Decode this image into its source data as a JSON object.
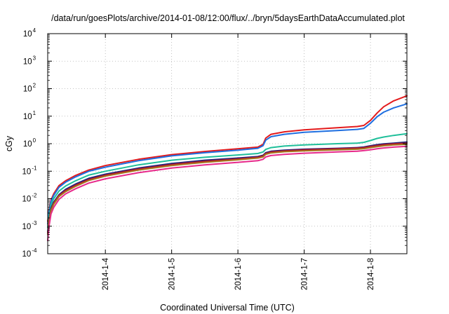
{
  "chart_data": {
    "type": "line",
    "title": "/data/run/goesPlots/archive/2014-01-08/12:00/flux/../bryn/5daysEarthDataAccumulated.plot",
    "xlabel": "Coordinated Universal Time (UTC)",
    "ylabel": "cGy",
    "x_unit": "days since 2014-01-03 00:00 UTC",
    "xlim": [
      0.13,
      5.55
    ],
    "yscale": "log",
    "ylim": [
      0.0001,
      10000
    ],
    "y_ticks": [
      {
        "base": "10",
        "exp": "-4"
      },
      {
        "base": "10",
        "exp": "-3"
      },
      {
        "base": "10",
        "exp": "-2"
      },
      {
        "base": "10",
        "exp": "-1"
      },
      {
        "base": "10",
        "exp": "0"
      },
      {
        "base": "10",
        "exp": "1"
      },
      {
        "base": "10",
        "exp": "2"
      },
      {
        "base": "10",
        "exp": "3"
      },
      {
        "base": "10",
        "exp": "4"
      }
    ],
    "x_ticks": [
      {
        "label": "2014-1-4",
        "x": 1
      },
      {
        "label": "2014-1-5",
        "x": 2
      },
      {
        "label": "2014-1-6",
        "x": 3
      },
      {
        "label": "2014-1-7",
        "x": 4
      },
      {
        "label": "2014-1-8",
        "x": 5
      }
    ],
    "grid": true,
    "legend": "none",
    "series": [
      {
        "color": "#e31a1c",
        "x": [
          0.13,
          0.15,
          0.18,
          0.22,
          0.3,
          0.4,
          0.55,
          0.75,
          1.0,
          1.5,
          2.0,
          2.5,
          3.0,
          3.3,
          3.38,
          3.42,
          3.5,
          3.7,
          4.0,
          4.5,
          4.8,
          4.9,
          5.0,
          5.1,
          5.2,
          5.35,
          5.55
        ],
        "y": [
          0.0015,
          0.004,
          0.009,
          0.015,
          0.03,
          0.045,
          0.07,
          0.11,
          0.16,
          0.27,
          0.4,
          0.52,
          0.65,
          0.75,
          0.95,
          1.6,
          2.2,
          2.7,
          3.2,
          3.8,
          4.2,
          4.6,
          7,
          13,
          22,
          36,
          55
        ]
      },
      {
        "color": "#1f6fe0",
        "x": [
          0.13,
          0.15,
          0.18,
          0.22,
          0.3,
          0.4,
          0.55,
          0.75,
          1.0,
          1.5,
          2.0,
          2.5,
          3.0,
          3.3,
          3.38,
          3.42,
          3.5,
          3.7,
          4.0,
          4.5,
          4.8,
          4.9,
          5.0,
          5.1,
          5.2,
          5.35,
          5.55
        ],
        "y": [
          0.0012,
          0.0035,
          0.008,
          0.013,
          0.026,
          0.04,
          0.062,
          0.1,
          0.14,
          0.24,
          0.36,
          0.47,
          0.58,
          0.68,
          0.85,
          1.35,
          1.8,
          2.2,
          2.6,
          3.0,
          3.3,
          3.6,
          5.5,
          9.5,
          14,
          20,
          28
        ]
      },
      {
        "color": "#1fbf9a",
        "x": [
          0.13,
          0.15,
          0.18,
          0.22,
          0.3,
          0.4,
          0.55,
          0.75,
          1.0,
          1.5,
          2.0,
          2.5,
          3.0,
          3.3,
          3.38,
          3.42,
          3.5,
          3.7,
          4.0,
          4.5,
          4.8,
          4.9,
          5.0,
          5.1,
          5.2,
          5.35,
          5.55
        ],
        "y": [
          0.0009,
          0.0025,
          0.006,
          0.01,
          0.019,
          0.029,
          0.045,
          0.072,
          0.1,
          0.17,
          0.25,
          0.32,
          0.39,
          0.44,
          0.5,
          0.62,
          0.72,
          0.82,
          0.9,
          1.0,
          1.05,
          1.12,
          1.3,
          1.55,
          1.75,
          2.0,
          2.3
        ]
      },
      {
        "color": "#1a237e",
        "x": [
          0.13,
          0.15,
          0.18,
          0.22,
          0.3,
          0.4,
          0.55,
          0.75,
          1.0,
          1.5,
          2.0,
          2.5,
          3.0,
          3.3,
          3.38,
          3.42,
          3.5,
          3.7,
          4.0,
          4.5,
          4.8,
          4.9,
          5.0,
          5.1,
          5.2,
          5.35,
          5.55
        ],
        "y": [
          0.0006,
          0.0018,
          0.0045,
          0.0075,
          0.014,
          0.022,
          0.034,
          0.055,
          0.078,
          0.13,
          0.19,
          0.25,
          0.3,
          0.34,
          0.38,
          0.47,
          0.53,
          0.58,
          0.63,
          0.68,
          0.72,
          0.76,
          0.84,
          0.92,
          0.98,
          1.05,
          1.15
        ]
      },
      {
        "color": "#b2182b",
        "x": [
          0.13,
          0.15,
          0.18,
          0.22,
          0.3,
          0.4,
          0.55,
          0.75,
          1.0,
          1.5,
          2.0,
          2.5,
          3.0,
          3.3,
          3.38,
          3.42,
          3.5,
          3.7,
          4.0,
          4.5,
          4.8,
          4.9,
          5.0,
          5.1,
          5.2,
          5.35,
          5.55
        ],
        "y": [
          0.00055,
          0.0016,
          0.004,
          0.0068,
          0.013,
          0.02,
          0.031,
          0.05,
          0.072,
          0.12,
          0.175,
          0.23,
          0.28,
          0.32,
          0.36,
          0.44,
          0.5,
          0.55,
          0.6,
          0.65,
          0.69,
          0.72,
          0.79,
          0.86,
          0.92,
          0.98,
          1.05
        ]
      },
      {
        "color": "#a6761d",
        "x": [
          0.13,
          0.15,
          0.18,
          0.22,
          0.3,
          0.4,
          0.55,
          0.75,
          1.0,
          1.5,
          2.0,
          2.5,
          3.0,
          3.3,
          3.38,
          3.42,
          3.5,
          3.7,
          4.0,
          4.5,
          4.8,
          4.9,
          5.0,
          5.1,
          5.2,
          5.35,
          5.55
        ],
        "y": [
          0.0005,
          0.0015,
          0.0037,
          0.0062,
          0.012,
          0.018,
          0.028,
          0.046,
          0.066,
          0.11,
          0.16,
          0.21,
          0.26,
          0.3,
          0.33,
          0.41,
          0.46,
          0.51,
          0.55,
          0.6,
          0.63,
          0.66,
          0.72,
          0.78,
          0.84,
          0.9,
          0.95
        ]
      },
      {
        "color": "#e7298a",
        "x": [
          0.13,
          0.15,
          0.18,
          0.22,
          0.3,
          0.4,
          0.55,
          0.75,
          1.0,
          1.5,
          2.0,
          2.5,
          3.0,
          3.3,
          3.38,
          3.42,
          3.5,
          3.7,
          4.0,
          4.5,
          4.8,
          4.9,
          5.0,
          5.1,
          5.2,
          5.35,
          5.55
        ],
        "y": [
          0.0003,
          0.001,
          0.0028,
          0.0048,
          0.0095,
          0.015,
          0.023,
          0.037,
          0.053,
          0.088,
          0.13,
          0.17,
          0.21,
          0.24,
          0.27,
          0.33,
          0.37,
          0.41,
          0.45,
          0.5,
          0.53,
          0.56,
          0.6,
          0.65,
          0.7,
          0.75,
          0.8
        ]
      }
    ]
  }
}
